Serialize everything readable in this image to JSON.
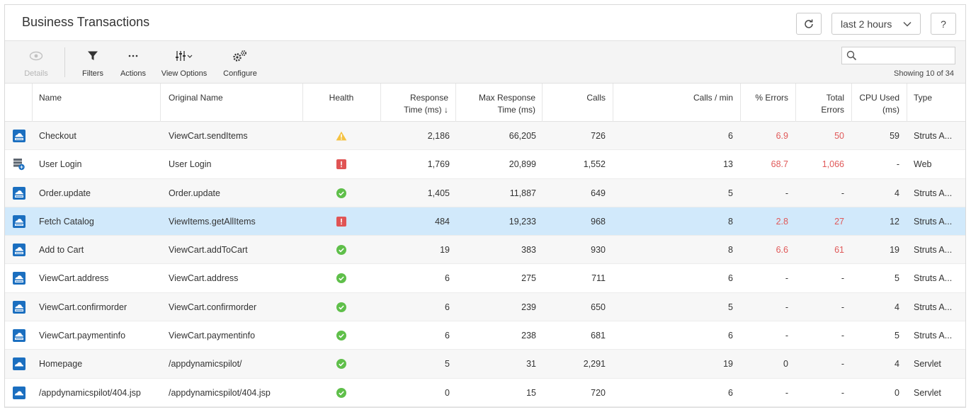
{
  "header": {
    "title": "Business Transactions",
    "time_range": "last 2 hours",
    "help_label": "?"
  },
  "toolbar": {
    "details_label": "Details",
    "filters_label": "Filters",
    "actions_label": "Actions",
    "view_options_label": "View Options",
    "configure_label": "Configure",
    "search_placeholder": "",
    "showing_text": "Showing 10 of 34"
  },
  "columns": {
    "name": "Name",
    "original_name": "Original Name",
    "health": "Health",
    "response_time_1": "Response",
    "response_time_2": "Time (ms) ↓",
    "max_response_1": "Max Response",
    "max_response_2": "Time (ms)",
    "calls": "Calls",
    "calls_per_min": "Calls / min",
    "pct_errors": "% Errors",
    "total_errors_1": "Total",
    "total_errors_2": "Errors",
    "cpu_used_1": "CPU Used",
    "cpu_used_2": "(ms)",
    "type": "Type"
  },
  "colors": {
    "accent_blue": "#1b6fc0",
    "warning": "#f5c242",
    "critical": "#e05454",
    "normal": "#5fbf4a",
    "error_text": "#e05959",
    "selected_row": "#d1e9fb"
  },
  "rows": [
    {
      "icon": "struts-icon",
      "name": "Checkout",
      "original_name": "ViewCart.sendItems",
      "health": "warning",
      "response": "2,186",
      "max_response": "66,205",
      "calls": "726",
      "calls_min": "6",
      "pct_errors": "6.9",
      "total_errors": "50",
      "cpu": "59",
      "type": "Struts A...",
      "errors_flag": true
    },
    {
      "icon": "web-server-icon",
      "name": "User Login",
      "original_name": "User Login",
      "health": "critical",
      "response": "1,769",
      "max_response": "20,899",
      "calls": "1,552",
      "calls_min": "13",
      "pct_errors": "68.7",
      "total_errors": "1,066",
      "cpu": "-",
      "type": "Web",
      "errors_flag": true
    },
    {
      "icon": "struts-icon",
      "name": "Order.update",
      "original_name": "Order.update",
      "health": "normal",
      "response": "1,405",
      "max_response": "11,887",
      "calls": "649",
      "calls_min": "5",
      "pct_errors": "-",
      "total_errors": "-",
      "cpu": "4",
      "type": "Struts A...",
      "errors_flag": false
    },
    {
      "icon": "struts-icon",
      "name": "Fetch Catalog",
      "original_name": "ViewItems.getAllItems",
      "health": "critical",
      "response": "484",
      "max_response": "19,233",
      "calls": "968",
      "calls_min": "8",
      "pct_errors": "2.8",
      "total_errors": "27",
      "cpu": "12",
      "type": "Struts A...",
      "errors_flag": true,
      "selected": true
    },
    {
      "icon": "struts-icon",
      "name": "Add to Cart",
      "original_name": "ViewCart.addToCart",
      "health": "normal",
      "response": "19",
      "max_response": "383",
      "calls": "930",
      "calls_min": "8",
      "pct_errors": "6.6",
      "total_errors": "61",
      "cpu": "19",
      "type": "Struts A...",
      "errors_flag": true
    },
    {
      "icon": "struts-icon",
      "name": "ViewCart.address",
      "original_name": "ViewCart.address",
      "health": "normal",
      "response": "6",
      "max_response": "275",
      "calls": "711",
      "calls_min": "6",
      "pct_errors": "-",
      "total_errors": "-",
      "cpu": "5",
      "type": "Struts A...",
      "errors_flag": false
    },
    {
      "icon": "struts-icon",
      "name": "ViewCart.confirmorder",
      "original_name": "ViewCart.confirmorder",
      "health": "normal",
      "response": "6",
      "max_response": "239",
      "calls": "650",
      "calls_min": "5",
      "pct_errors": "-",
      "total_errors": "-",
      "cpu": "4",
      "type": "Struts A...",
      "errors_flag": false
    },
    {
      "icon": "struts-icon",
      "name": "ViewCart.paymentinfo",
      "original_name": "ViewCart.paymentinfo",
      "health": "normal",
      "response": "6",
      "max_response": "238",
      "calls": "681",
      "calls_min": "6",
      "pct_errors": "-",
      "total_errors": "-",
      "cpu": "5",
      "type": "Struts A...",
      "errors_flag": false
    },
    {
      "icon": "servlet-icon",
      "name": "Homepage",
      "original_name": "/appdynamicspilot/",
      "health": "normal",
      "response": "5",
      "max_response": "31",
      "calls": "2,291",
      "calls_min": "19",
      "pct_errors": "0",
      "total_errors": "-",
      "cpu": "4",
      "type": "Servlet",
      "errors_flag": false
    },
    {
      "icon": "servlet-icon",
      "name": "/appdynamicspilot/404.jsp",
      "original_name": "/appdynamicspilot/404.jsp",
      "health": "normal",
      "response": "0",
      "max_response": "15",
      "calls": "720",
      "calls_min": "6",
      "pct_errors": "-",
      "total_errors": "-",
      "cpu": "0",
      "type": "Servlet",
      "errors_flag": false
    }
  ]
}
